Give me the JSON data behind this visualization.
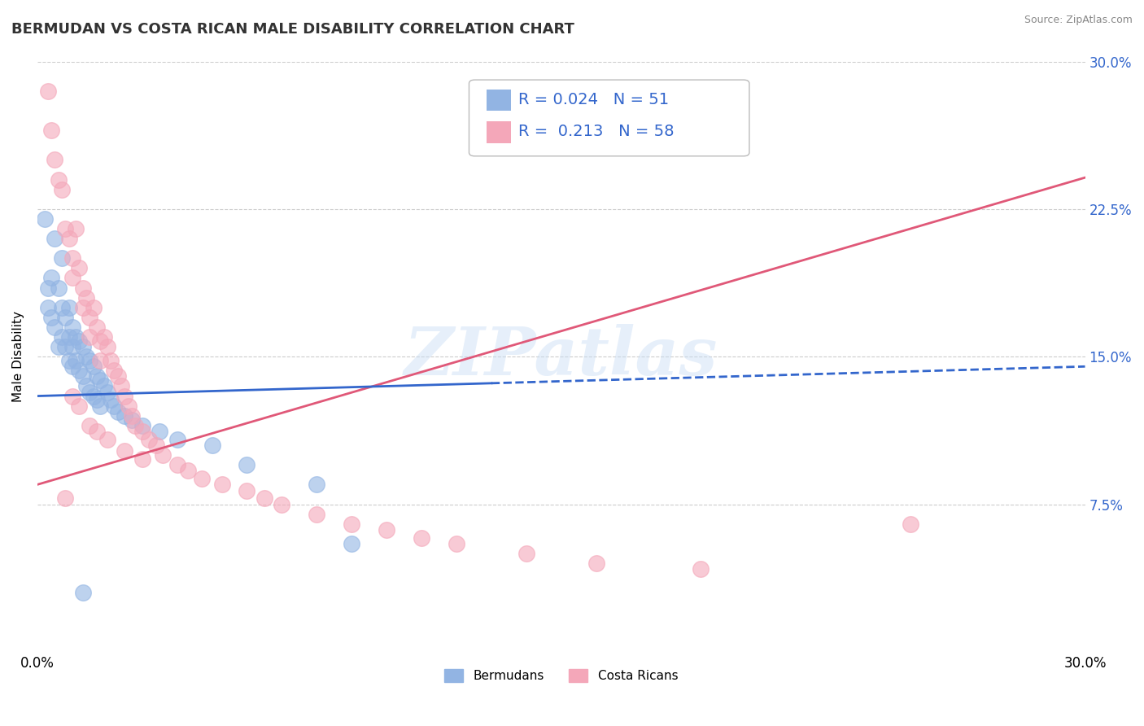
{
  "title": "BERMUDAN VS COSTA RICAN MALE DISABILITY CORRELATION CHART",
  "source": "Source: ZipAtlas.com",
  "ylabel": "Male Disability",
  "xlim": [
    0.0,
    0.3
  ],
  "ylim": [
    0.0,
    0.3
  ],
  "bermuda_R": 0.024,
  "bermuda_N": 51,
  "costarica_R": 0.213,
  "costarica_N": 58,
  "bermuda_color": "#92b4e3",
  "costarica_color": "#f4a7b9",
  "bermuda_line_color": "#3366cc",
  "costarica_line_color": "#e05878",
  "legend_label_bermuda": "Bermudans",
  "legend_label_costarica": "Costa Ricans",
  "watermark": "ZIPatlas",
  "background_color": "#ffffff",
  "grid_color": "#cccccc",
  "bermuda_x": [
    0.002,
    0.003,
    0.003,
    0.004,
    0.004,
    0.005,
    0.005,
    0.006,
    0.006,
    0.007,
    0.007,
    0.007,
    0.008,
    0.008,
    0.009,
    0.009,
    0.009,
    0.01,
    0.01,
    0.01,
    0.011,
    0.011,
    0.012,
    0.012,
    0.013,
    0.013,
    0.014,
    0.014,
    0.015,
    0.015,
    0.016,
    0.016,
    0.017,
    0.017,
    0.018,
    0.018,
    0.019,
    0.02,
    0.021,
    0.022,
    0.023,
    0.025,
    0.027,
    0.03,
    0.035,
    0.04,
    0.05,
    0.06,
    0.08,
    0.09,
    0.013
  ],
  "bermuda_y": [
    0.22,
    0.185,
    0.175,
    0.19,
    0.17,
    0.21,
    0.165,
    0.185,
    0.155,
    0.2,
    0.175,
    0.16,
    0.17,
    0.155,
    0.175,
    0.16,
    0.148,
    0.165,
    0.155,
    0.145,
    0.16,
    0.148,
    0.158,
    0.143,
    0.155,
    0.14,
    0.15,
    0.135,
    0.148,
    0.132,
    0.145,
    0.13,
    0.14,
    0.128,
    0.138,
    0.125,
    0.135,
    0.132,
    0.128,
    0.125,
    0.122,
    0.12,
    0.118,
    0.115,
    0.112,
    0.108,
    0.105,
    0.095,
    0.085,
    0.055,
    0.03
  ],
  "costarica_x": [
    0.003,
    0.004,
    0.005,
    0.006,
    0.007,
    0.008,
    0.009,
    0.01,
    0.01,
    0.011,
    0.012,
    0.013,
    0.013,
    0.014,
    0.015,
    0.015,
    0.016,
    0.017,
    0.018,
    0.018,
    0.019,
    0.02,
    0.021,
    0.022,
    0.023,
    0.024,
    0.025,
    0.026,
    0.027,
    0.028,
    0.03,
    0.032,
    0.034,
    0.036,
    0.04,
    0.043,
    0.047,
    0.053,
    0.06,
    0.065,
    0.07,
    0.08,
    0.09,
    0.1,
    0.11,
    0.12,
    0.14,
    0.16,
    0.19,
    0.25,
    0.01,
    0.012,
    0.015,
    0.017,
    0.02,
    0.025,
    0.03,
    0.008
  ],
  "costarica_y": [
    0.285,
    0.265,
    0.25,
    0.24,
    0.235,
    0.215,
    0.21,
    0.2,
    0.19,
    0.215,
    0.195,
    0.185,
    0.175,
    0.18,
    0.17,
    0.16,
    0.175,
    0.165,
    0.158,
    0.148,
    0.16,
    0.155,
    0.148,
    0.143,
    0.14,
    0.135,
    0.13,
    0.125,
    0.12,
    0.115,
    0.112,
    0.108,
    0.105,
    0.1,
    0.095,
    0.092,
    0.088,
    0.085,
    0.082,
    0.078,
    0.075,
    0.07,
    0.065,
    0.062,
    0.058,
    0.055,
    0.05,
    0.045,
    0.042,
    0.065,
    0.13,
    0.125,
    0.115,
    0.112,
    0.108,
    0.102,
    0.098,
    0.078
  ],
  "bermuda_intercept": 0.13,
  "bermuda_slope": 0.05,
  "costarica_intercept": 0.085,
  "costarica_slope": 0.52
}
